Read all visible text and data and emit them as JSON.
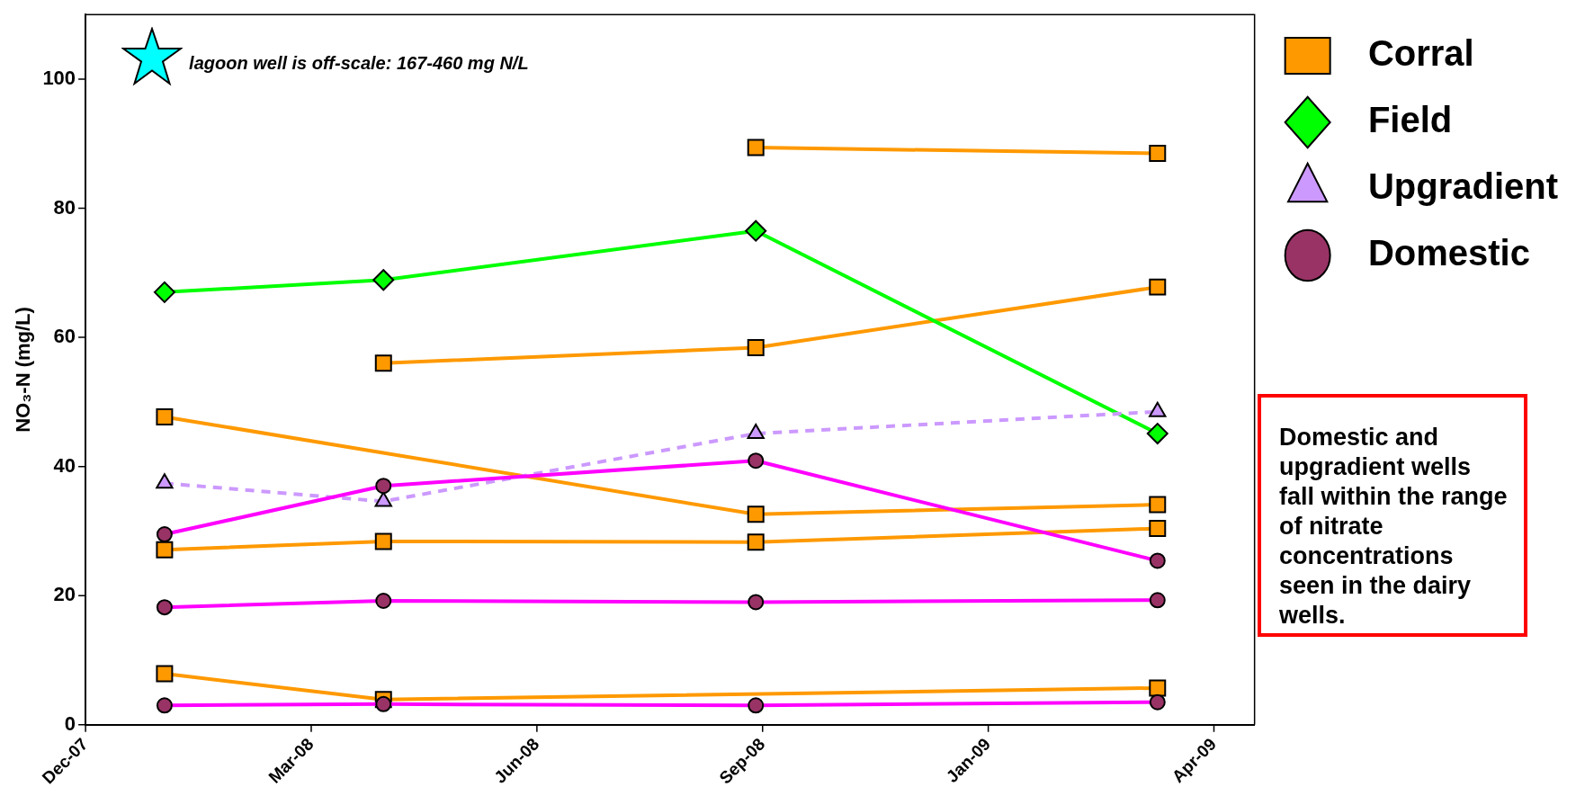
{
  "chart_data": {
    "type": "line",
    "ylabel": "NO₃-N (mg/L)",
    "annotations": [
      "lagoon well is off-scale: 167-460 mg N/L",
      "Domestic and upgradient wells fall within the range of nitrate concentrations seen in the dairy wells."
    ],
    "x": [
      "2008-01-05",
      "2008-04-11",
      "2008-09-23",
      "2009-03-20"
    ],
    "xlim": [
      "2007-12-01",
      "2009-05-02"
    ],
    "xticks": [
      {
        "value": "2007-12-01",
        "label": "Dec-07"
      },
      {
        "value": "2008-03-10",
        "label": "Mar-08"
      },
      {
        "value": "2008-06-18",
        "label": "Jun-08"
      },
      {
        "value": "2008-09-26",
        "label": "Sep-08"
      },
      {
        "value": "2009-01-04",
        "label": "Jan-09"
      },
      {
        "value": "2009-04-14",
        "label": "Apr-09"
      }
    ],
    "ylim": [
      0,
      110
    ],
    "yticks": [
      0,
      20,
      40,
      60,
      80,
      100
    ],
    "grid": false,
    "legend": "right",
    "series": [
      {
        "name": "Corral",
        "color": "#ff9900",
        "marker": "square",
        "values": [
          null,
          null,
          89.4,
          88.5
        ]
      },
      {
        "color": "#ff9900",
        "marker": "square",
        "values": [
          null,
          56.0,
          58.4,
          67.8
        ]
      },
      {
        "color": "#ff9900",
        "marker": "square",
        "values": [
          47.7,
          null,
          32.6,
          34.1
        ]
      },
      {
        "color": "#ff9900",
        "marker": "square",
        "values": [
          27.1,
          28.4,
          28.3,
          30.4
        ]
      },
      {
        "color": "#ff9900",
        "marker": "square",
        "values": [
          7.9,
          3.9,
          null,
          5.7
        ]
      },
      {
        "name": "Field",
        "color": "#00ff00",
        "marker": "diamond",
        "values": [
          67.0,
          68.9,
          76.5,
          45.1
        ]
      },
      {
        "name": "Upgradient",
        "color": "#cc99ff",
        "marker": "triangle",
        "line_style": "dashed",
        "values": [
          37.4,
          34.6,
          45.1,
          48.5
        ]
      },
      {
        "name": "Domestic",
        "color": "#ff00ff",
        "colors": [
          "#993366",
          "#993366",
          "#993366",
          "#993366"
        ],
        "marker": "circle",
        "values": [
          29.5,
          37.0,
          40.9,
          25.4
        ]
      },
      {
        "color": "#ff00ff",
        "colors": [
          "#993366",
          "#993366",
          "#993366",
          "#993366"
        ],
        "marker": "circle",
        "values": [
          18.2,
          19.2,
          19.0,
          19.3
        ]
      },
      {
        "color": "#ff00ff",
        "colors": [
          "#993366",
          "#993366",
          "#993366",
          "#993366"
        ],
        "marker": "circle",
        "values": [
          3.0,
          3.2,
          3.0,
          3.5
        ]
      }
    ]
  }
}
